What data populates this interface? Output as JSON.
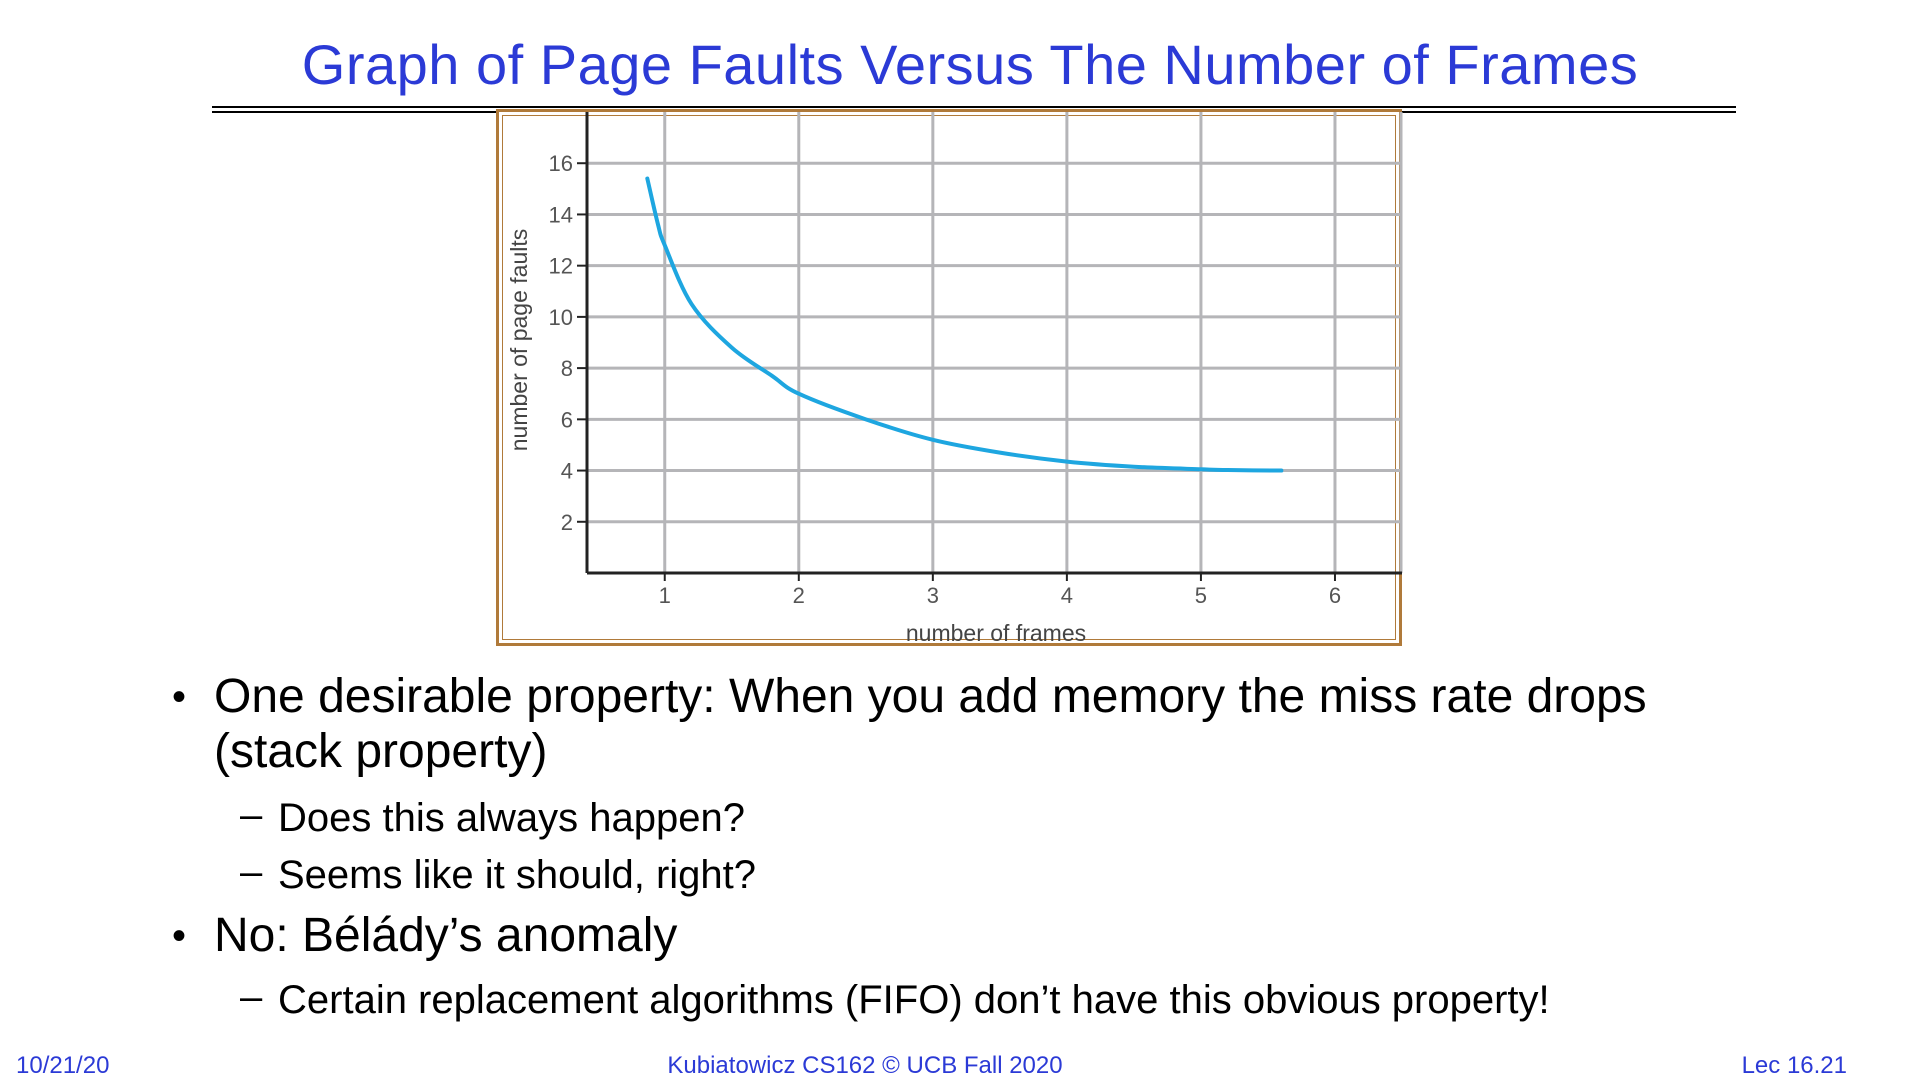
{
  "slide": {
    "title": "Graph of Page Faults Versus The Number of Frames",
    "bullets": [
      {
        "text_line1": "One desirable property: When you add memory the miss rate drops",
        "text_line2": "(stack property)",
        "subs": [
          "Does this always happen?",
          "Seems like it should, right?"
        ]
      },
      {
        "text_line1": "No: Bélády’s anomaly",
        "subs": [
          "Certain replacement algorithms (FIFO) don’t have this obvious property!"
        ]
      }
    ],
    "bullet_glyph": "•",
    "dash_glyph": "–"
  },
  "footer": {
    "date": "10/21/20",
    "center": "Kubiatowicz CS162 © UCB Fall 2020",
    "lecture": "Lec 16.21"
  },
  "colors": {
    "title": "#2b3ad6",
    "curve": "#1ea6e0",
    "grid": "#b5b5b8",
    "frame": "#b07a3a"
  },
  "chart_data": {
    "type": "line",
    "xlabel": "number of frames",
    "ylabel": "number of page faults",
    "xticks": [
      1,
      2,
      3,
      4,
      5,
      6
    ],
    "yticks": [
      2,
      4,
      6,
      8,
      10,
      12,
      14,
      16
    ],
    "xlim": [
      0.42,
      6.5
    ],
    "ylim": [
      0,
      18
    ],
    "grid": true,
    "series": [
      {
        "x": [
          0.87,
          0.95,
          1.0,
          1.2,
          1.5,
          1.8,
          2.0,
          2.5,
          3.0,
          3.5,
          4.0,
          4.5,
          5.0,
          5.2,
          5.6
        ],
        "y": [
          15.4,
          13.6,
          12.8,
          10.5,
          8.8,
          7.7,
          7.0,
          6.0,
          5.2,
          4.7,
          4.35,
          4.15,
          4.05,
          4.02,
          4.0
        ]
      }
    ]
  }
}
